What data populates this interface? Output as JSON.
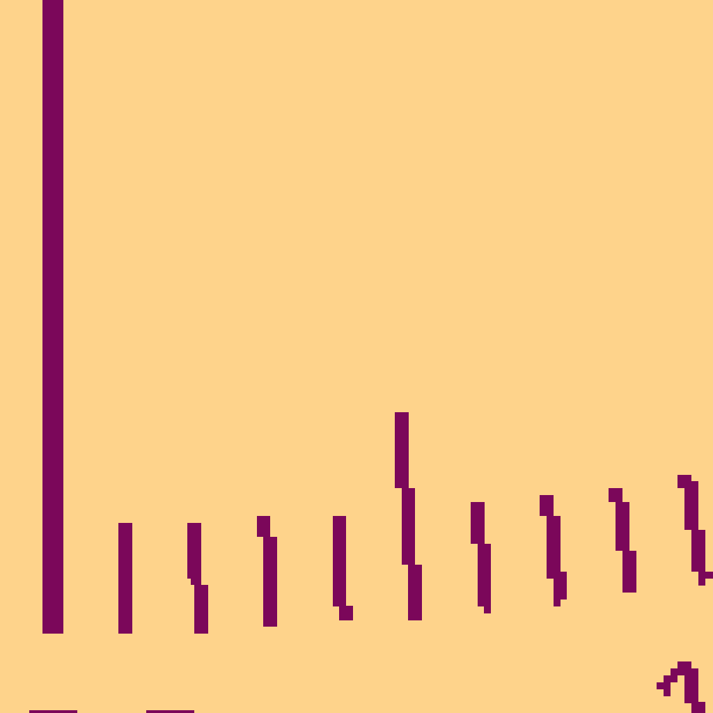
{
  "colors": {
    "background": "#FED38B",
    "foreground": "#7B075A"
  }
}
